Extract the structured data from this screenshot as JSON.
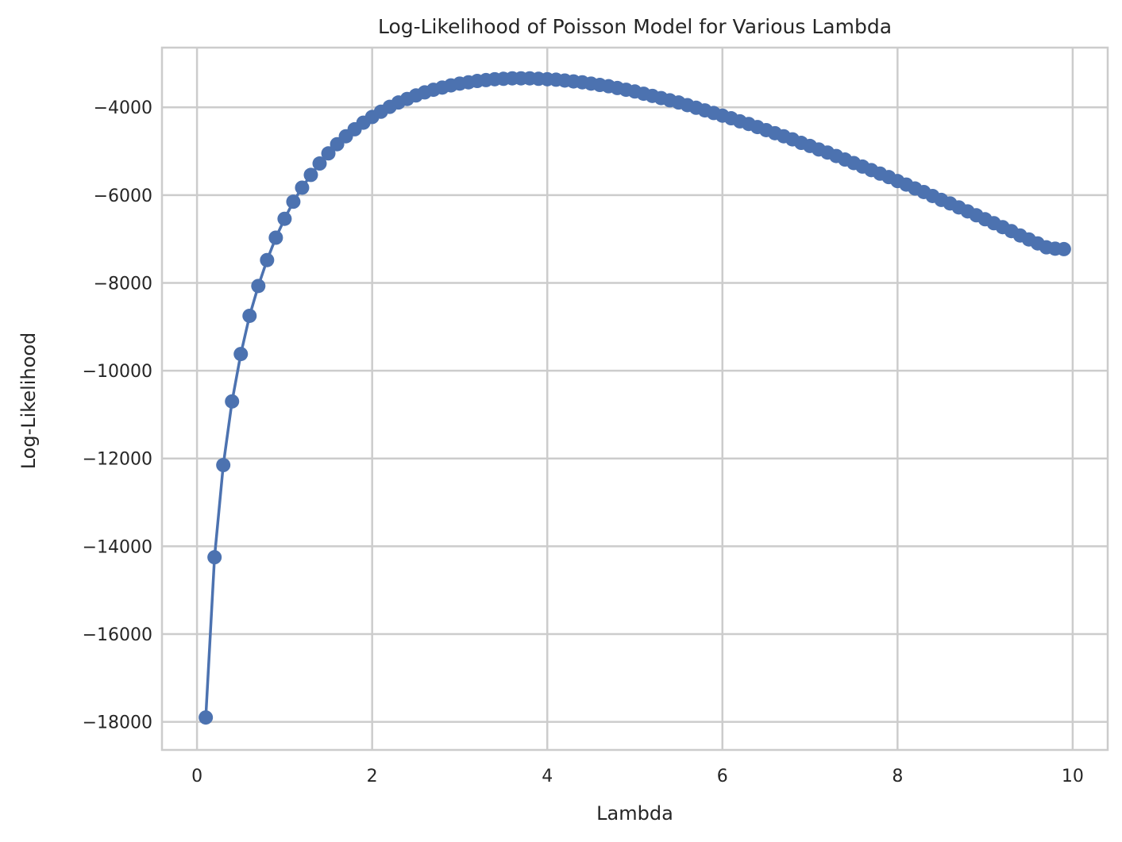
{
  "chart_data": {
    "type": "line",
    "title": "Log-Likelihood of Poisson Model for Various Lambda",
    "xlabel": "Lambda",
    "ylabel": "Log-Likelihood",
    "xlim": [
      -0.4,
      10.4
    ],
    "ylim": [
      -18640,
      -2640
    ],
    "xticks": [
      0,
      2,
      4,
      6,
      8,
      10
    ],
    "xtick_labels": [
      "0",
      "2",
      "4",
      "6",
      "8",
      "10"
    ],
    "yticks": [
      -18000,
      -16000,
      -14000,
      -12000,
      -10000,
      -8000,
      -6000,
      -4000
    ],
    "ytick_labels": [
      "−18000",
      "−16000",
      "−14000",
      "−12000",
      "−10000",
      "−8000",
      "−6000",
      "−4000"
    ],
    "grid": true,
    "legend": "none",
    "series": [
      {
        "color": "#4c72b0",
        "marker": "circle",
        "x": [
          0.1,
          0.2,
          0.3,
          0.4,
          0.5,
          0.6,
          0.7,
          0.8,
          0.9,
          1.0,
          1.1,
          1.2,
          1.3,
          1.4,
          1.5,
          1.6,
          1.7,
          1.8,
          1.9,
          2.0,
          2.1,
          2.2,
          2.3,
          2.4,
          2.5,
          2.6,
          2.7,
          2.8,
          2.9,
          3.0,
          3.1,
          3.2,
          3.3,
          3.4,
          3.5,
          3.6,
          3.7,
          3.8,
          3.9,
          4.0,
          4.1,
          4.2,
          4.3,
          4.4,
          4.5,
          4.6,
          4.7,
          4.8,
          4.9,
          5.0,
          5.1,
          5.2,
          5.3,
          5.4,
          5.5,
          5.6,
          5.7,
          5.8,
          5.9,
          6.0,
          6.1,
          6.2,
          6.3,
          6.4,
          6.5,
          6.6,
          6.7,
          6.8,
          6.9,
          7.0,
          7.1,
          7.2,
          7.3,
          7.4,
          7.5,
          7.6,
          7.7,
          7.8,
          7.9,
          8.0,
          8.1,
          8.2,
          8.3,
          8.4,
          8.5,
          8.6,
          8.7,
          8.8,
          8.9,
          9.0,
          9.1,
          9.2,
          9.3,
          9.4,
          9.5,
          9.6,
          9.7,
          9.8,
          9.9
        ],
        "y": [
          -17900,
          -14250,
          -12150,
          -10700,
          -9620,
          -8750,
          -8070,
          -7480,
          -6970,
          -6540,
          -6150,
          -5830,
          -5540,
          -5280,
          -5050,
          -4840,
          -4660,
          -4500,
          -4350,
          -4220,
          -4100,
          -3990,
          -3890,
          -3810,
          -3730,
          -3660,
          -3600,
          -3550,
          -3500,
          -3460,
          -3430,
          -3400,
          -3380,
          -3360,
          -3350,
          -3340,
          -3340,
          -3340,
          -3350,
          -3360,
          -3370,
          -3390,
          -3410,
          -3430,
          -3460,
          -3490,
          -3520,
          -3560,
          -3600,
          -3640,
          -3690,
          -3740,
          -3790,
          -3840,
          -3890,
          -3950,
          -4010,
          -4070,
          -4130,
          -4190,
          -4250,
          -4320,
          -4380,
          -4450,
          -4520,
          -4590,
          -4660,
          -4730,
          -4810,
          -4880,
          -4960,
          -5030,
          -5110,
          -5190,
          -5270,
          -5350,
          -5430,
          -5510,
          -5590,
          -5680,
          -5760,
          -5850,
          -5930,
          -6020,
          -6110,
          -6190,
          -6280,
          -6370,
          -6460,
          -6550,
          -6640,
          -6730,
          -6820,
          -6920,
          -7010,
          -7100,
          -7190,
          -7220,
          -7230
        ]
      }
    ]
  }
}
